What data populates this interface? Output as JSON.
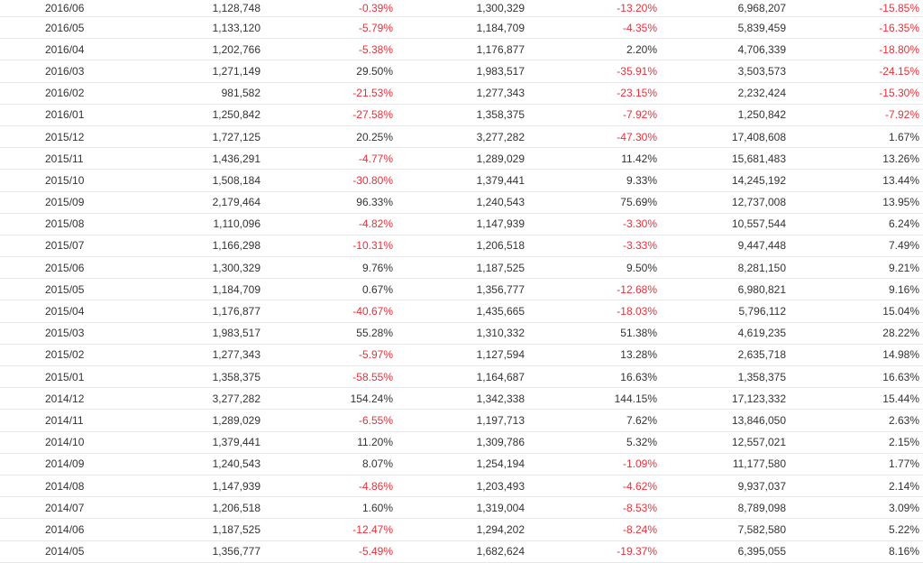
{
  "colors": {
    "negative": "#e8303a",
    "text": "#333333",
    "row_border": "#e6e6e6"
  },
  "rows": [
    [
      "2016/06",
      "1,128,748",
      "-0.39%",
      "1,300,329",
      "-13.20%",
      "6,968,207",
      "-15.85%"
    ],
    [
      "2016/05",
      "1,133,120",
      "-5.79%",
      "1,184,709",
      "-4.35%",
      "5,839,459",
      "-16.35%"
    ],
    [
      "2016/04",
      "1,202,766",
      "-5.38%",
      "1,176,877",
      "2.20%",
      "4,706,339",
      "-18.80%"
    ],
    [
      "2016/03",
      "1,271,149",
      "29.50%",
      "1,983,517",
      "-35.91%",
      "3,503,573",
      "-24.15%"
    ],
    [
      "2016/02",
      "981,582",
      "-21.53%",
      "1,277,343",
      "-23.15%",
      "2,232,424",
      "-15.30%"
    ],
    [
      "2016/01",
      "1,250,842",
      "-27.58%",
      "1,358,375",
      "-7.92%",
      "1,250,842",
      "-7.92%"
    ],
    [
      "2015/12",
      "1,727,125",
      "20.25%",
      "3,277,282",
      "-47.30%",
      "17,408,608",
      "1.67%"
    ],
    [
      "2015/11",
      "1,436,291",
      "-4.77%",
      "1,289,029",
      "11.42%",
      "15,681,483",
      "13.26%"
    ],
    [
      "2015/10",
      "1,508,184",
      "-30.80%",
      "1,379,441",
      "9.33%",
      "14,245,192",
      "13.44%"
    ],
    [
      "2015/09",
      "2,179,464",
      "96.33%",
      "1,240,543",
      "75.69%",
      "12,737,008",
      "13.95%"
    ],
    [
      "2015/08",
      "1,110,096",
      "-4.82%",
      "1,147,939",
      "-3.30%",
      "10,557,544",
      "6.24%"
    ],
    [
      "2015/07",
      "1,166,298",
      "-10.31%",
      "1,206,518",
      "-3.33%",
      "9,447,448",
      "7.49%"
    ],
    [
      "2015/06",
      "1,300,329",
      "9.76%",
      "1,187,525",
      "9.50%",
      "8,281,150",
      "9.21%"
    ],
    [
      "2015/05",
      "1,184,709",
      "0.67%",
      "1,356,777",
      "-12.68%",
      "6,980,821",
      "9.16%"
    ],
    [
      "2015/04",
      "1,176,877",
      "-40.67%",
      "1,435,665",
      "-18.03%",
      "5,796,112",
      "15.04%"
    ],
    [
      "2015/03",
      "1,983,517",
      "55.28%",
      "1,310,332",
      "51.38%",
      "4,619,235",
      "28.22%"
    ],
    [
      "2015/02",
      "1,277,343",
      "-5.97%",
      "1,127,594",
      "13.28%",
      "2,635,718",
      "14.98%"
    ],
    [
      "2015/01",
      "1,358,375",
      "-58.55%",
      "1,164,687",
      "16.63%",
      "1,358,375",
      "16.63%"
    ],
    [
      "2014/12",
      "3,277,282",
      "154.24%",
      "1,342,338",
      "144.15%",
      "17,123,332",
      "15.44%"
    ],
    [
      "2014/11",
      "1,289,029",
      "-6.55%",
      "1,197,713",
      "7.62%",
      "13,846,050",
      "2.63%"
    ],
    [
      "2014/10",
      "1,379,441",
      "11.20%",
      "1,309,786",
      "5.32%",
      "12,557,021",
      "2.15%"
    ],
    [
      "2014/09",
      "1,240,543",
      "8.07%",
      "1,254,194",
      "-1.09%",
      "11,177,580",
      "1.77%"
    ],
    [
      "2014/08",
      "1,147,939",
      "-4.86%",
      "1,203,493",
      "-4.62%",
      "9,937,037",
      "2.14%"
    ],
    [
      "2014/07",
      "1,206,518",
      "1.60%",
      "1,319,004",
      "-8.53%",
      "8,789,098",
      "3.09%"
    ],
    [
      "2014/06",
      "1,187,525",
      "-12.47%",
      "1,294,202",
      "-8.24%",
      "7,582,580",
      "5.22%"
    ],
    [
      "2014/05",
      "1,356,777",
      "-5.49%",
      "1,682,624",
      "-19.37%",
      "6,395,055",
      "8.16%"
    ]
  ]
}
